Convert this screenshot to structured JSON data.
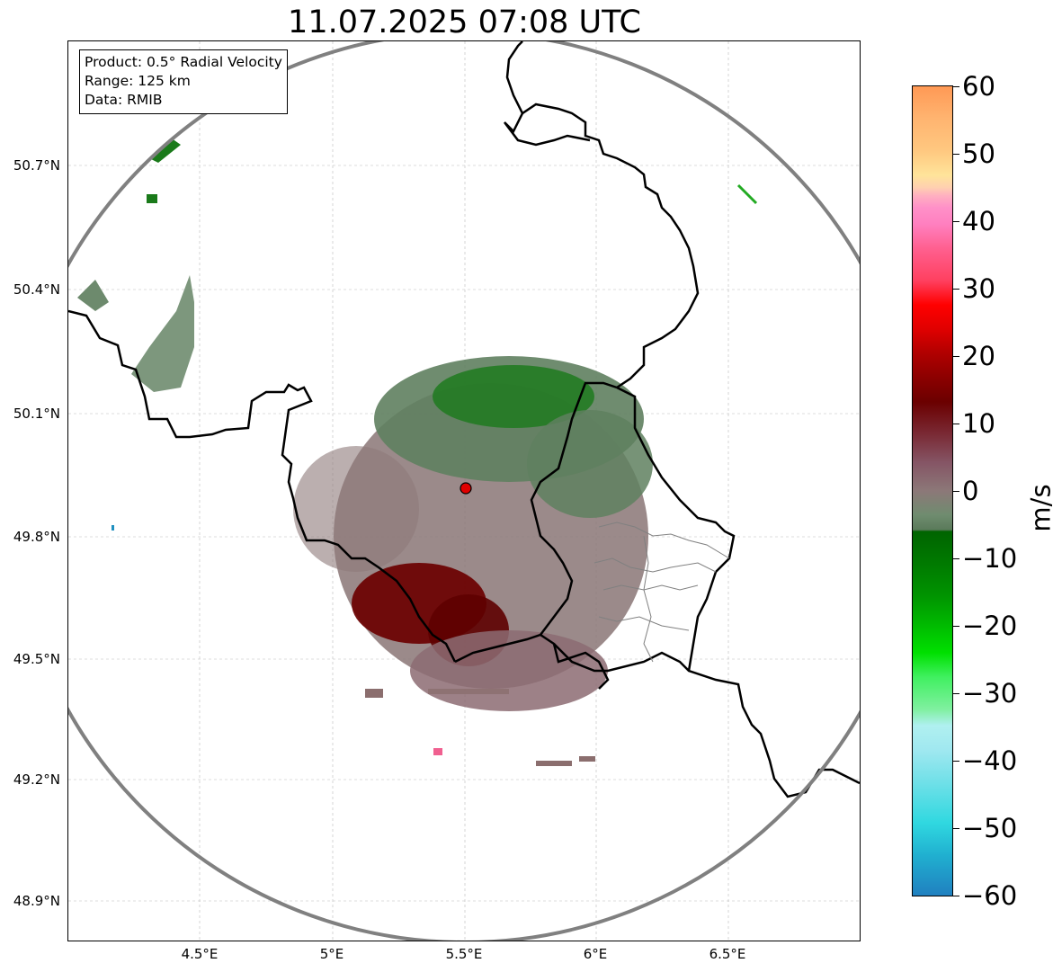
{
  "title": "11.07.2025 07:08 UTC",
  "info": {
    "product": "Product: 0.5° Radial Velocity",
    "range": "Range: 125 km",
    "data_source": "Data: RMIB"
  },
  "axes": {
    "y_ticks": [
      "50.7°N",
      "50.4°N",
      "50.1°N",
      "49.8°N",
      "49.5°N",
      "49.2°N",
      "48.9°N"
    ],
    "x_ticks": [
      "4.5°E",
      "5°E",
      "5.5°E",
      "6°E",
      "6.5°E"
    ],
    "lon_range": [
      4.02,
      7.02
    ],
    "lat_range": [
      48.8,
      51.0
    ],
    "grid": true
  },
  "colorbar": {
    "unit": "m/s",
    "ticks": [
      "60",
      "50",
      "40",
      "30",
      "20",
      "10",
      "0",
      "−10",
      "−20",
      "−30",
      "−40",
      "−50",
      "−60"
    ],
    "min": -60,
    "max": 60
  },
  "radar": {
    "site_lon": 5.505,
    "site_lat": 49.915,
    "range_km": 125,
    "site_color": "#e00000"
  },
  "colors": {
    "range_ring": "#808080",
    "border": "#000000",
    "admin_border": "#808080",
    "outbound_dark": "#6b0000",
    "inbound_dark": "#006400",
    "near_zero": "#8a7878"
  }
}
